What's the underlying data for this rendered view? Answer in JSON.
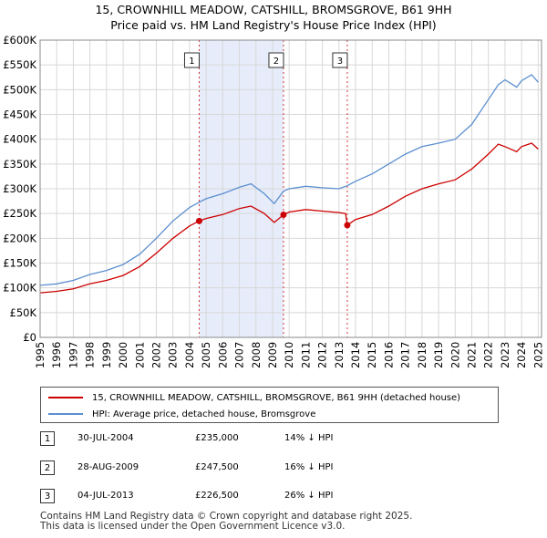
{
  "title": {
    "line1": "15, CROWNHILL MEADOW, CATSHILL, BROMSGROVE, B61 9HH",
    "line2": "Price paid vs. HM Land Registry's House Price Index (HPI)"
  },
  "chart_data": {
    "type": "line",
    "title": "15, CROWNHILL MEADOW, CATSHILL, BROMSGROVE, B61 9HH — Price paid vs. HM Land Registry's House Price Index (HPI)",
    "xlabel": "",
    "ylabel": "",
    "xlim": [
      1995,
      2025.2
    ],
    "ylim": [
      0,
      600000
    ],
    "x_ticks": [
      "1995",
      "1996",
      "1997",
      "1998",
      "1999",
      "2000",
      "2001",
      "2002",
      "2003",
      "2004",
      "2005",
      "2006",
      "2007",
      "2008",
      "2009",
      "2010",
      "2011",
      "2012",
      "2013",
      "2014",
      "2015",
      "2016",
      "2017",
      "2018",
      "2019",
      "2020",
      "2021",
      "2022",
      "2023",
      "2024",
      "2025"
    ],
    "y_ticks": [
      {
        "value": 0,
        "label": "£0"
      },
      {
        "value": 50000,
        "label": "£50K"
      },
      {
        "value": 100000,
        "label": "£100K"
      },
      {
        "value": 150000,
        "label": "£150K"
      },
      {
        "value": 200000,
        "label": "£200K"
      },
      {
        "value": 250000,
        "label": "£250K"
      },
      {
        "value": 300000,
        "label": "£300K"
      },
      {
        "value": 350000,
        "label": "£350K"
      },
      {
        "value": 400000,
        "label": "£400K"
      },
      {
        "value": 450000,
        "label": "£450K"
      },
      {
        "value": 500000,
        "label": "£500K"
      },
      {
        "value": 550000,
        "label": "£550K"
      },
      {
        "value": 600000,
        "label": "£600K"
      }
    ],
    "grid": true,
    "shaded_periods": [
      [
        2004.58,
        2009.66
      ],
      [
        2013.5,
        2013.5
      ]
    ],
    "series": [
      {
        "name": "HPI: Average price, detached house, Bromsgrove",
        "color": "#5b8fd0",
        "points": [
          [
            1995,
            105000
          ],
          [
            1996,
            108000
          ],
          [
            1997,
            115000
          ],
          [
            1998,
            127000
          ],
          [
            1999,
            135000
          ],
          [
            2000,
            147000
          ],
          [
            2001,
            168000
          ],
          [
            2002,
            200000
          ],
          [
            2003,
            235000
          ],
          [
            2004,
            262000
          ],
          [
            2004.58,
            273000
          ],
          [
            2005,
            280000
          ],
          [
            2006,
            290000
          ],
          [
            2007,
            303000
          ],
          [
            2007.7,
            310000
          ],
          [
            2008.5,
            290000
          ],
          [
            2009.1,
            270000
          ],
          [
            2009.66,
            295000
          ],
          [
            2010,
            300000
          ],
          [
            2011,
            305000
          ],
          [
            2012,
            302000
          ],
          [
            2013,
            300000
          ],
          [
            2013.5,
            306000
          ],
          [
            2014,
            315000
          ],
          [
            2015,
            330000
          ],
          [
            2016,
            350000
          ],
          [
            2017,
            370000
          ],
          [
            2018,
            385000
          ],
          [
            2019,
            392000
          ],
          [
            2020,
            400000
          ],
          [
            2021,
            430000
          ],
          [
            2022,
            480000
          ],
          [
            2022.6,
            510000
          ],
          [
            2023,
            520000
          ],
          [
            2023.7,
            505000
          ],
          [
            2024,
            518000
          ],
          [
            2024.6,
            530000
          ],
          [
            2025,
            515000
          ]
        ]
      },
      {
        "name": "15, CROWNHILL MEADOW, CATSHILL, BROMSGROVE, B61 9HH (detached house)",
        "color": "#cc0000",
        "points": [
          [
            1995,
            90000
          ],
          [
            1996,
            93000
          ],
          [
            1997,
            98000
          ],
          [
            1998,
            108000
          ],
          [
            1999,
            115000
          ],
          [
            2000,
            125000
          ],
          [
            2001,
            143000
          ],
          [
            2002,
            170000
          ],
          [
            2003,
            200000
          ],
          [
            2004,
            225000
          ],
          [
            2004.58,
            235000
          ],
          [
            2005,
            240000
          ],
          [
            2006,
            248000
          ],
          [
            2007,
            260000
          ],
          [
            2007.7,
            265000
          ],
          [
            2008.5,
            250000
          ],
          [
            2009.1,
            232000
          ],
          [
            2009.66,
            247500
          ],
          [
            2010,
            253000
          ],
          [
            2011,
            258000
          ],
          [
            2012,
            255000
          ],
          [
            2013,
            252000
          ],
          [
            2013.4,
            250000
          ],
          [
            2013.5,
            226500
          ],
          [
            2014,
            238000
          ],
          [
            2015,
            248000
          ],
          [
            2016,
            265000
          ],
          [
            2017,
            285000
          ],
          [
            2018,
            300000
          ],
          [
            2019,
            310000
          ],
          [
            2020,
            318000
          ],
          [
            2021,
            340000
          ],
          [
            2022,
            370000
          ],
          [
            2022.6,
            390000
          ],
          [
            2023,
            385000
          ],
          [
            2023.7,
            375000
          ],
          [
            2024,
            385000
          ],
          [
            2024.6,
            392000
          ],
          [
            2025,
            380000
          ]
        ]
      }
    ],
    "annotations": [
      {
        "label": "1",
        "x": 2004.58,
        "y": 235000
      },
      {
        "label": "2",
        "x": 2009.66,
        "y": 247500
      },
      {
        "label": "3",
        "x": 2013.5,
        "y": 226500
      }
    ]
  },
  "legend": {
    "property_label": "15, CROWNHILL MEADOW, CATSHILL, BROMSGROVE, B61 9HH (detached house)",
    "hpi_label": "HPI: Average price, detached house, Bromsgrove",
    "property_color": "#cc0000",
    "hpi_color": "#5b8fd0"
  },
  "sales": [
    {
      "num": "1",
      "date": "30-JUL-2004",
      "price": "£235,000",
      "delta": "14% ↓ HPI"
    },
    {
      "num": "2",
      "date": "28-AUG-2009",
      "price": "£247,500",
      "delta": "16% ↓ HPI"
    },
    {
      "num": "3",
      "date": "04-JUL-2013",
      "price": "£226,500",
      "delta": "26% ↓ HPI"
    }
  ],
  "footer": {
    "line1": "Contains HM Land Registry data © Crown copyright and database right 2025.",
    "line2": "This data is licensed under the Open Government Licence v3.0."
  }
}
